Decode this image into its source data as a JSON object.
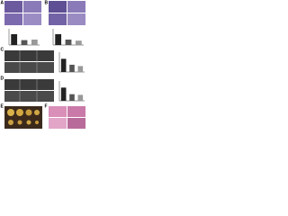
{
  "panels": [
    {
      "label": "A"
    },
    {
      "label": "B"
    },
    {
      "label": "C"
    },
    {
      "label": "D"
    },
    {
      "label": "E"
    },
    {
      "label": "F"
    }
  ],
  "charts": [
    {
      "ylim": [
        0,
        150
      ],
      "values": [
        100,
        45,
        50
      ],
      "colors": [
        "#222222",
        "#555555",
        "#999999"
      ]
    },
    {
      "ylim": [
        0,
        150
      ],
      "values": [
        100,
        50,
        40
      ],
      "colors": [
        "#222222",
        "#555555",
        "#999999"
      ]
    },
    {
      "ylim": [
        0,
        150
      ],
      "values": [
        100,
        55,
        45
      ],
      "colors": [
        "#222222",
        "#555555",
        "#999999"
      ]
    },
    {
      "ylim": [
        0,
        150
      ],
      "values": [
        100,
        50,
        45
      ],
      "colors": [
        "#222222",
        "#555555",
        "#999999"
      ]
    }
  ]
}
